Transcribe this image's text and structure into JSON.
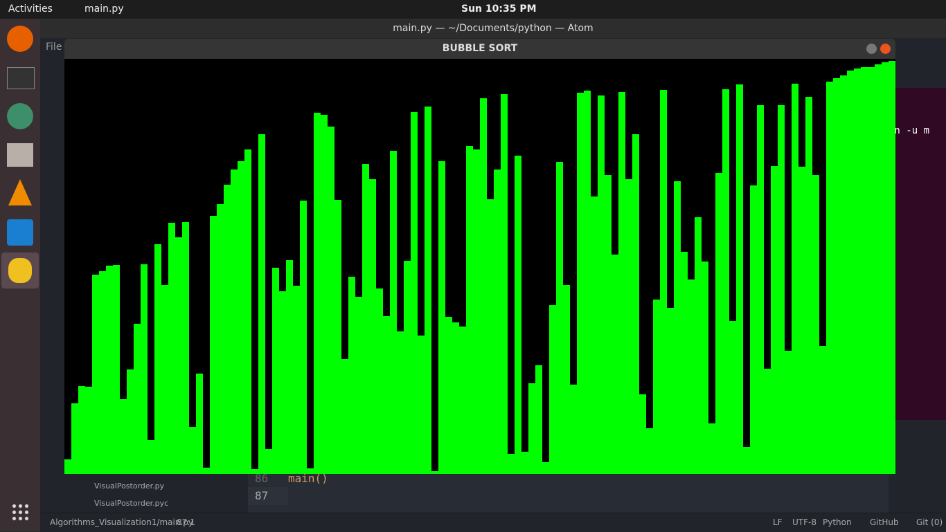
{
  "top_bar": {
    "activities": "Activities",
    "app": "main.py",
    "clock": "Sun 10:35 PM"
  },
  "atom": {
    "title": "main.py — ~/Documents/python — Atom",
    "menu": "File",
    "tree": [
      "VisualPostorder.py",
      "VisualPostorder.pyc"
    ],
    "lines": [
      {
        "number": "86",
        "code": "main()"
      },
      {
        "number": "87",
        "code": ""
      }
    ],
    "status_left": [
      "Algorithms_Visualization1/main.py",
      "87:1"
    ],
    "status_right": [
      "LF",
      "UTF-8",
      "Python",
      "GitHub",
      "Git (0)"
    ]
  },
  "terminal": {
    "text": "on -u m"
  },
  "chart_data": {
    "type": "bar",
    "title": "BUBBLE SORT",
    "color": "#00ff00",
    "ylim": [
      0,
      600
    ],
    "values": [
      21,
      102,
      127,
      126,
      288,
      293,
      301,
      302,
      108,
      151,
      217,
      303,
      49,
      332,
      273,
      363,
      342,
      364,
      68,
      145,
      9,
      373,
      390,
      418,
      440,
      452,
      469,
      7,
      491,
      36,
      298,
      264,
      309,
      272,
      395,
      8,
      522,
      519,
      502,
      396,
      166,
      285,
      256,
      448,
      426,
      268,
      228,
      467,
      206,
      308,
      523,
      200,
      531,
      4,
      452,
      227,
      219,
      213,
      474,
      469,
      543,
      397,
      440,
      549,
      29,
      460,
      32,
      131,
      157,
      17,
      244,
      451,
      273,
      129,
      551,
      554,
      401,
      547,
      432,
      317,
      552,
      426,
      491,
      115,
      66,
      252,
      555,
      240,
      423,
      321,
      281,
      371,
      307,
      73,
      435,
      556,
      221,
      563,
      39,
      417,
      533,
      152,
      445,
      533,
      178,
      564,
      444,
      545,
      432,
      185,
      567,
      572,
      576,
      583,
      586,
      588,
      588,
      592,
      595,
      597
    ]
  }
}
